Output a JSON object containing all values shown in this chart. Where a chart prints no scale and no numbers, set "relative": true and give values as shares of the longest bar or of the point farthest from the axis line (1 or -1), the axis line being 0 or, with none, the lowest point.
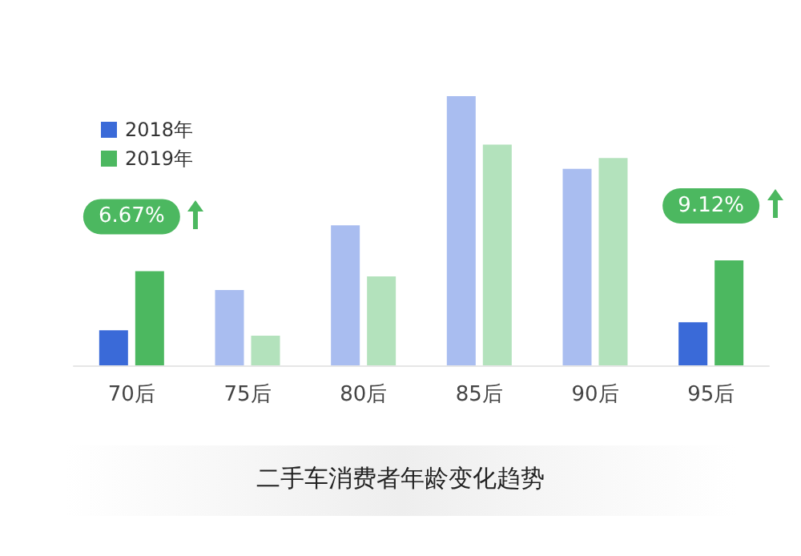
{
  "chart_data": {
    "type": "bar",
    "title": "二手车消费者年龄变化趋势",
    "relative": true,
    "categories": [
      "70后",
      "75后",
      "80后",
      "85后",
      "90后",
      "95后"
    ],
    "series": [
      {
        "name": "2018年",
        "color": "#3a6ad8",
        "colors": [
          "#3a6ad8",
          "#a9bdf0",
          "#a9bdf0",
          "#a9bdf0",
          "#a9bdf0",
          "#3a6ad8"
        ],
        "values": [
          0.13,
          0.28,
          0.52,
          1,
          0.73,
          0.16
        ]
      },
      {
        "name": "2019年",
        "color": "#4cb860",
        "colors": [
          "#4cb860",
          "#b3e2bc",
          "#b3e2bc",
          "#b3e2bc",
          "#b3e2bc",
          "#4cb860"
        ],
        "values": [
          0.35,
          0.11,
          0.33,
          0.82,
          0.77,
          0.39
        ]
      }
    ],
    "annotations": [
      "6.67%",
      "9.12%"
    ],
    "legend": "top left"
  }
}
